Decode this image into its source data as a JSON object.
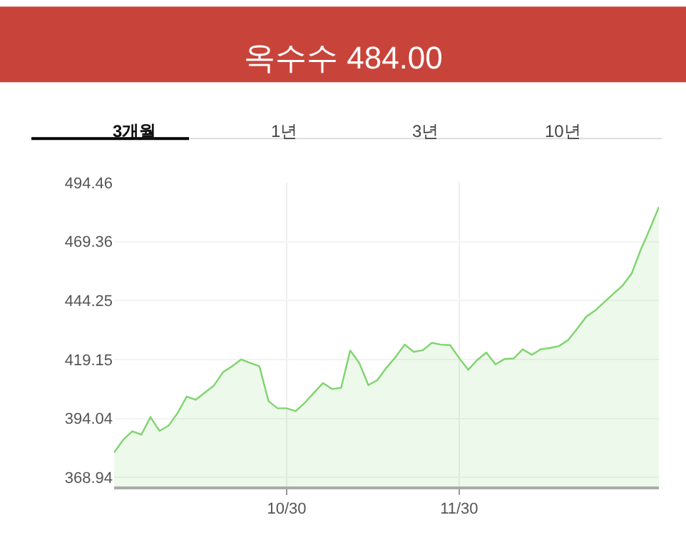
{
  "chart_data": {
    "type": "area",
    "title": "옥수수 484.00",
    "annotations": [
      "3개월",
      "1년",
      "3년",
      "10년"
    ],
    "categories": [
      null,
      null,
      null,
      null,
      null,
      null,
      null,
      null,
      null,
      null,
      null,
      null,
      null,
      null,
      null,
      null,
      null,
      null,
      null,
      "10/30",
      null,
      null,
      null,
      null,
      null,
      null,
      null,
      null,
      null,
      null,
      null,
      null,
      null,
      null,
      null,
      null,
      null,
      null,
      "11/30",
      null,
      null,
      null,
      null,
      null,
      null,
      null,
      null,
      null,
      null,
      null,
      null,
      null,
      null,
      null,
      null,
      null,
      null,
      null,
      null,
      null,
      null
    ],
    "series": [
      {
        "color": "#7fd46e",
        "values": [
          379.6,
          385.0,
          388.6,
          387.2,
          394.6,
          388.8,
          391.0,
          396.4,
          403.4,
          402.0,
          405.1,
          408.1,
          413.8,
          416.3,
          419.2,
          417.7,
          416.3,
          401.5,
          398.4,
          398.4,
          397.2,
          400.7,
          405.0,
          409.1,
          406.6,
          407.1,
          423.0,
          417.7,
          408.3,
          410.4,
          415.7,
          420.2,
          425.5,
          422.4,
          423.1,
          426.3,
          425.5,
          425.3,
          419.8,
          414.8,
          419.0,
          422.1,
          417.1,
          419.4,
          419.6,
          423.5,
          421.2,
          423.5,
          424.1,
          424.9,
          427.4,
          432.3,
          437.4,
          440.1,
          443.6,
          447.2,
          450.6,
          455.8,
          465.9,
          474.7,
          484.1
        ]
      }
    ],
    "ylim": [
      365.1,
      494.46
    ],
    "yticks": [
      368.94,
      394.04,
      419.15,
      444.25,
      469.36,
      494.46
    ],
    "grid": true,
    "marker": "none",
    "line_style": "solid"
  }
}
